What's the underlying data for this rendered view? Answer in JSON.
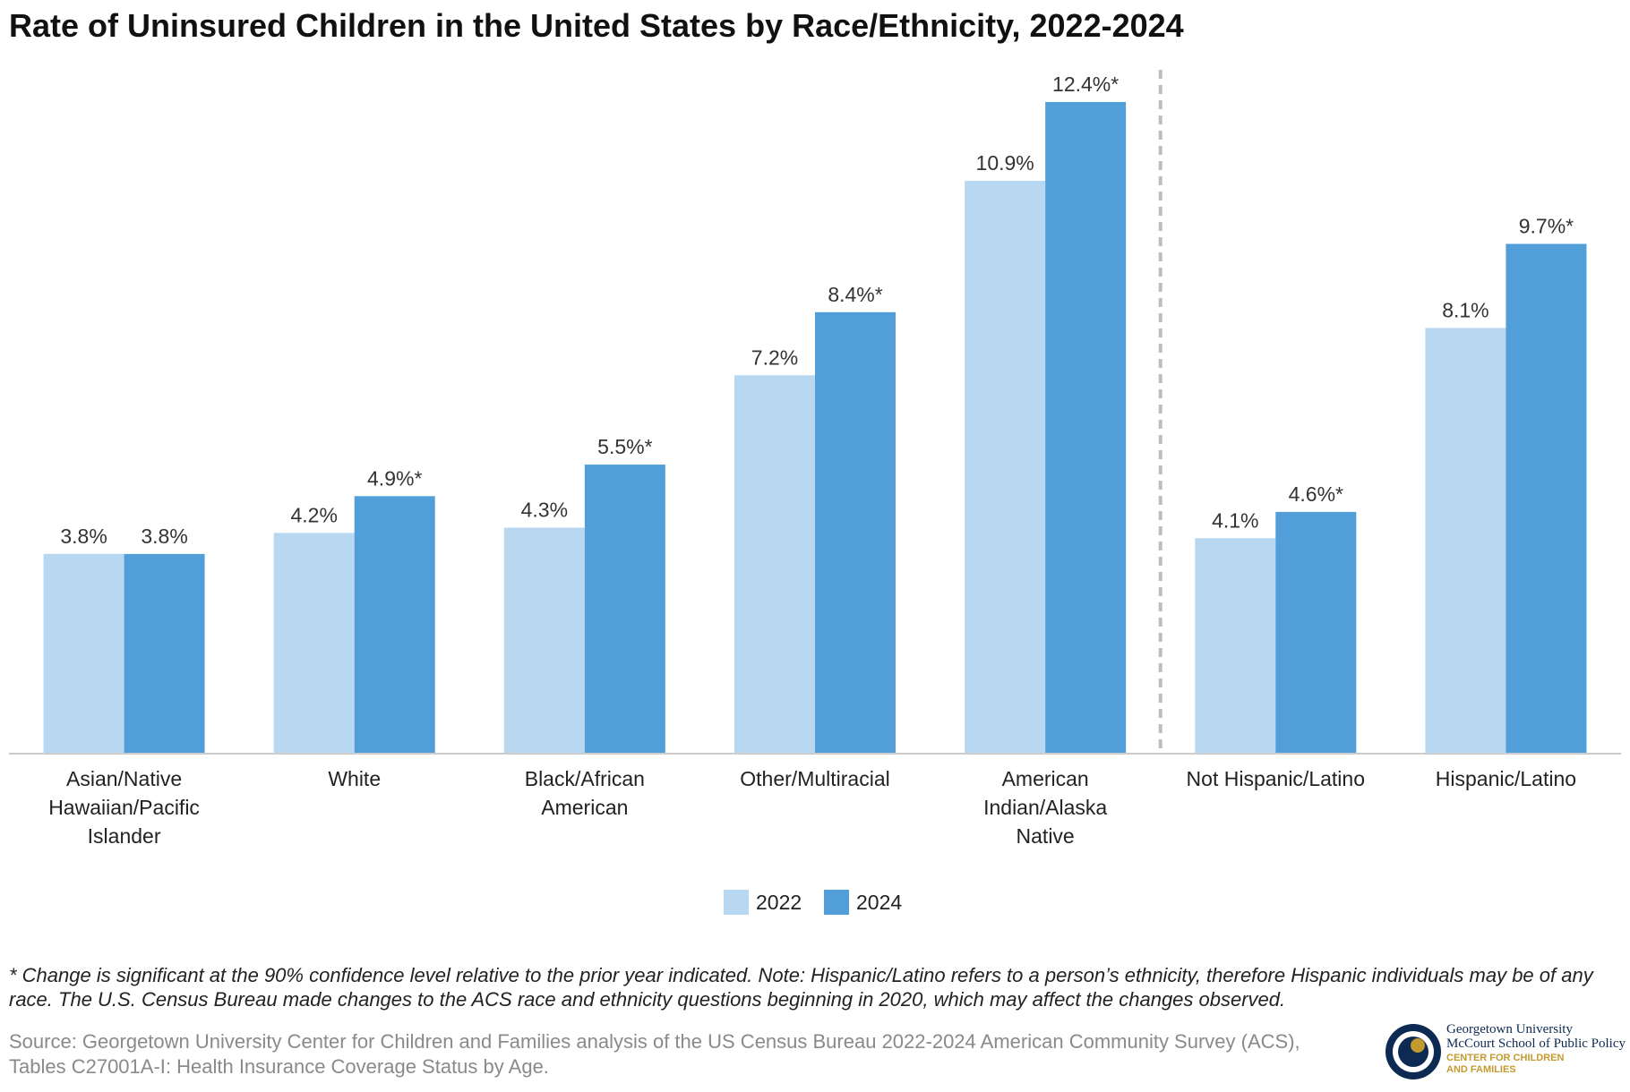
{
  "title": "Rate of Uninsured Children in the United States by Race/Ethnicity, 2022-2024",
  "colors": {
    "series_2022": "#b8d7f1",
    "series_2024": "#519ed8",
    "divider": "#bdbdbd"
  },
  "chart_data": {
    "type": "bar",
    "categories": [
      "Asian/Native Hawaiian/Pacific Islander",
      "White",
      "Black/African American",
      "Other/Multiracial",
      "American Indian/Alaska Native",
      "Not Hispanic/Latino",
      "Hispanic/Latino"
    ],
    "category_lines": [
      [
        "Asian/Native",
        "Hawaiian/Pacific",
        "Islander"
      ],
      [
        "White"
      ],
      [
        "Black/African",
        "American"
      ],
      [
        "Other/Multiracial"
      ],
      [
        "American",
        "Indian/Alaska",
        "Native"
      ],
      [
        "Not Hispanic/Latino"
      ],
      [
        "Hispanic/Latino"
      ]
    ],
    "series": [
      {
        "name": "2022",
        "values": [
          3.8,
          4.2,
          4.3,
          7.2,
          10.9,
          4.1,
          8.1
        ],
        "labels": [
          "3.8%",
          "4.2%",
          "4.3%",
          "7.2%",
          "10.9%",
          "4.1%",
          "8.1%"
        ]
      },
      {
        "name": "2024",
        "values": [
          3.8,
          4.9,
          5.5,
          8.4,
          12.4,
          4.6,
          9.7
        ],
        "labels": [
          "3.8%",
          "4.9%*",
          "5.5%*",
          "8.4%*",
          "12.4%*",
          "4.6%*",
          "9.7%*"
        ]
      }
    ],
    "ylim": [
      0,
      14
    ],
    "grid": false,
    "legend": "bottom-center",
    "divider_after_category": 4
  },
  "legend": {
    "item_2022": "2022",
    "item_2024": "2024"
  },
  "note": "* Change is significant at the 90% confidence level relative to the prior year indicated. Note: Hispanic/Latino refers to a person’s ethnicity, therefore Hispanic individuals may be of any race. The U.S. Census Bureau made changes to the ACS race and ethnicity questions beginning in 2020, which may affect the changes observed.",
  "source": "Source: Georgetown University Center for Children and Families analysis of the US Census Bureau 2022-2024 American Community Survey (ACS), Tables C27001A-I: Health Insurance Coverage Status by Age.",
  "logo": {
    "line1": "Georgetown University",
    "line2": "McCourt School of Public Policy",
    "line3": "CENTER FOR CHILDREN",
    "line4": "AND FAMILIES"
  }
}
